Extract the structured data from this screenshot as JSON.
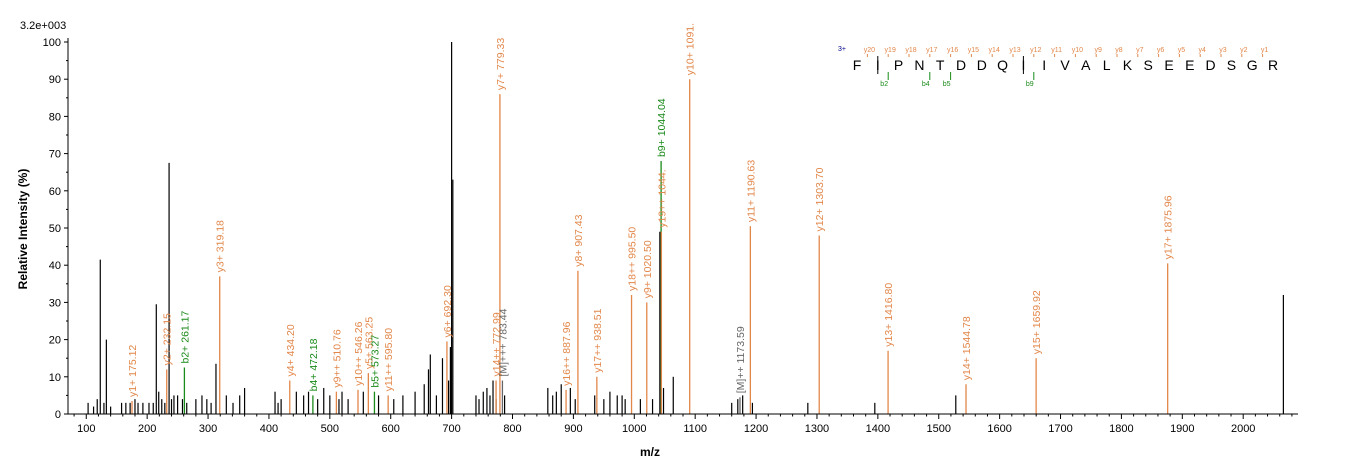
{
  "chart_data": {
    "type": "spectrum",
    "scale_label": "3.2e+003",
    "xlabel": "m/z",
    "ylabel": "Relative  Intensity (%)",
    "xlim": [
      70,
      2090
    ],
    "ylim": [
      0,
      100
    ],
    "x_ticks": [
      100,
      200,
      300,
      400,
      500,
      600,
      700,
      800,
      900,
      1000,
      1100,
      1200,
      1300,
      1400,
      1500,
      1600,
      1700,
      1800,
      1900,
      2000
    ],
    "y_ticks": [
      0,
      10,
      20,
      30,
      40,
      50,
      60,
      70,
      80,
      90,
      100
    ],
    "colors": {
      "y_ion": "#e2874a",
      "b_ion": "#1a8a1a",
      "precursor": "#666666",
      "peak": "#000000",
      "charge": "#00008b"
    },
    "unlabeled_peaks": [
      {
        "x": 103,
        "y": 3
      },
      {
        "x": 112,
        "y": 2
      },
      {
        "x": 118,
        "y": 4
      },
      {
        "x": 123,
        "y": 41.5
      },
      {
        "x": 129,
        "y": 3
      },
      {
        "x": 133,
        "y": 20
      },
      {
        "x": 140,
        "y": 2
      },
      {
        "x": 158,
        "y": 3
      },
      {
        "x": 165,
        "y": 3
      },
      {
        "x": 172,
        "y": 3
      },
      {
        "x": 180,
        "y": 4
      },
      {
        "x": 185,
        "y": 3
      },
      {
        "x": 193,
        "y": 3
      },
      {
        "x": 203,
        "y": 3
      },
      {
        "x": 210,
        "y": 3
      },
      {
        "x": 215,
        "y": 29.5
      },
      {
        "x": 219,
        "y": 6
      },
      {
        "x": 224,
        "y": 4
      },
      {
        "x": 229,
        "y": 3
      },
      {
        "x": 236,
        "y": 67.5
      },
      {
        "x": 240,
        "y": 4
      },
      {
        "x": 244,
        "y": 5
      },
      {
        "x": 250,
        "y": 5
      },
      {
        "x": 258,
        "y": 4
      },
      {
        "x": 265,
        "y": 3
      },
      {
        "x": 280,
        "y": 4
      },
      {
        "x": 290,
        "y": 5
      },
      {
        "x": 298,
        "y": 4
      },
      {
        "x": 305,
        "y": 3
      },
      {
        "x": 313,
        "y": 13.5
      },
      {
        "x": 330,
        "y": 5
      },
      {
        "x": 341,
        "y": 3
      },
      {
        "x": 352,
        "y": 5
      },
      {
        "x": 360,
        "y": 7
      },
      {
        "x": 410,
        "y": 6
      },
      {
        "x": 415,
        "y": 3
      },
      {
        "x": 420,
        "y": 4
      },
      {
        "x": 445,
        "y": 6
      },
      {
        "x": 457,
        "y": 5
      },
      {
        "x": 465,
        "y": 6
      },
      {
        "x": 480,
        "y": 4
      },
      {
        "x": 490,
        "y": 7
      },
      {
        "x": 500,
        "y": 5
      },
      {
        "x": 515,
        "y": 4
      },
      {
        "x": 520,
        "y": 6
      },
      {
        "x": 530,
        "y": 4
      },
      {
        "x": 555,
        "y": 6
      },
      {
        "x": 580,
        "y": 5
      },
      {
        "x": 605,
        "y": 4
      },
      {
        "x": 620,
        "y": 5
      },
      {
        "x": 640,
        "y": 6
      },
      {
        "x": 655,
        "y": 8
      },
      {
        "x": 662,
        "y": 12
      },
      {
        "x": 665,
        "y": 16
      },
      {
        "x": 675,
        "y": 5
      },
      {
        "x": 685,
        "y": 15
      },
      {
        "x": 695,
        "y": 9
      },
      {
        "x": 698,
        "y": 18
      },
      {
        "x": 700,
        "y": 100
      },
      {
        "x": 702,
        "y": 63
      },
      {
        "x": 740,
        "y": 5
      },
      {
        "x": 745,
        "y": 4
      },
      {
        "x": 752,
        "y": 6
      },
      {
        "x": 758,
        "y": 7
      },
      {
        "x": 763,
        "y": 5
      },
      {
        "x": 768,
        "y": 9
      },
      {
        "x": 773,
        "y": 4
      },
      {
        "x": 787,
        "y": 5
      },
      {
        "x": 858,
        "y": 7
      },
      {
        "x": 866,
        "y": 5
      },
      {
        "x": 872,
        "y": 6
      },
      {
        "x": 880,
        "y": 8
      },
      {
        "x": 895,
        "y": 7
      },
      {
        "x": 903,
        "y": 4
      },
      {
        "x": 935,
        "y": 5
      },
      {
        "x": 950,
        "y": 4
      },
      {
        "x": 960,
        "y": 6
      },
      {
        "x": 972,
        "y": 5
      },
      {
        "x": 980,
        "y": 5
      },
      {
        "x": 985,
        "y": 4
      },
      {
        "x": 1010,
        "y": 4
      },
      {
        "x": 1030,
        "y": 4
      },
      {
        "x": 1042,
        "y": 49
      },
      {
        "x": 1048,
        "y": 7
      },
      {
        "x": 1064,
        "y": 10
      },
      {
        "x": 1160,
        "y": 3
      },
      {
        "x": 1170,
        "y": 4
      },
      {
        "x": 1178,
        "y": 5
      },
      {
        "x": 1194,
        "y": 3
      },
      {
        "x": 1285,
        "y": 3
      },
      {
        "x": 1395,
        "y": 3
      },
      {
        "x": 1528,
        "y": 5
      },
      {
        "x": 2066,
        "y": 32
      }
    ],
    "annotated_peaks": [
      {
        "x": 175.12,
        "y": 3.5,
        "label": "y1+ 175.12",
        "type": "y"
      },
      {
        "x": 232.15,
        "y": 12,
        "label": "y2+ 232.15",
        "type": "y"
      },
      {
        "x": 261.17,
        "y": 12.5,
        "label": "b2+ 261.17",
        "type": "b"
      },
      {
        "x": 319.18,
        "y": 37,
        "label": "y3+ 319.18",
        "type": "y"
      },
      {
        "x": 434.2,
        "y": 9,
        "label": "y4+ 434.20",
        "type": "y"
      },
      {
        "x": 472.18,
        "y": 5,
        "label": "b4+ 472.18",
        "type": "b"
      },
      {
        "x": 510.76,
        "y": 6,
        "label": "y9++ 510.76",
        "type": "y"
      },
      {
        "x": 546.26,
        "y": 6.5,
        "label": "y10++ 546.26",
        "type": "y"
      },
      {
        "x": 563.25,
        "y": 11,
        "label": "y5+ 563.25",
        "type": "y"
      },
      {
        "x": 573.27,
        "y": 6,
        "label": "b5+ 573.27",
        "type": "b"
      },
      {
        "x": 595.8,
        "y": 5,
        "label": "y11++ 595.80",
        "type": "y"
      },
      {
        "x": 692.3,
        "y": 19.5,
        "label": "y6+ 692.30",
        "type": "y"
      },
      {
        "x": 772.99,
        "y": 9,
        "label": "y14++ 772.99",
        "type": "y"
      },
      {
        "x": 779.33,
        "y": 86,
        "label": "y7+ 779.33",
        "type": "y"
      },
      {
        "x": 783.44,
        "y": 9,
        "label": "[M]+++ 783.44",
        "type": "m"
      },
      {
        "x": 887.96,
        "y": 6.5,
        "label": "y16++ 887.96",
        "type": "y"
      },
      {
        "x": 907.43,
        "y": 38.5,
        "label": "y8+ 907.43",
        "type": "y"
      },
      {
        "x": 938.51,
        "y": 10,
        "label": "y17++ 938.51",
        "type": "y"
      },
      {
        "x": 995.5,
        "y": 32,
        "label": "y18++ 995.50",
        "type": "y"
      },
      {
        "x": 1020.5,
        "y": 30,
        "label": "y9+ 1020.50",
        "type": "y"
      },
      {
        "x": 1044.04,
        "y": 68,
        "label": "b9+ 1044.04",
        "type": "b"
      },
      {
        "x": 1044.5,
        "y": 49,
        "label": "y19++ 1044.",
        "type": "y"
      },
      {
        "x": 1091.0,
        "y": 90,
        "label": "y10+ 1091.",
        "type": "y"
      },
      {
        "x": 1173.59,
        "y": 4.5,
        "label": "[M]++ 1173.59",
        "type": "m"
      },
      {
        "x": 1190.63,
        "y": 50.5,
        "label": "y11+ 1190.63",
        "type": "y"
      },
      {
        "x": 1303.7,
        "y": 48,
        "label": "y12+ 1303.70",
        "type": "y"
      },
      {
        "x": 1416.8,
        "y": 17,
        "label": "y13+ 1416.80",
        "type": "y"
      },
      {
        "x": 1544.78,
        "y": 8,
        "label": "y14+ 1544.78",
        "type": "y"
      },
      {
        "x": 1659.92,
        "y": 15,
        "label": "y15+ 1659.92",
        "type": "y"
      },
      {
        "x": 1875.96,
        "y": 40.5,
        "label": "y17+ 1875.96",
        "type": "y"
      }
    ],
    "sequence": {
      "charge": "3+",
      "residues": [
        "F",
        "I",
        "P",
        "N",
        "T",
        "D",
        "D",
        "Q",
        "I",
        "I",
        "V",
        "A",
        "L",
        "K",
        "S",
        "E",
        "E",
        "D",
        "S",
        "G",
        "R"
      ],
      "y_ions": [
        "y20",
        "y19",
        "y18",
        "y17",
        "y16",
        "y15",
        "y14",
        "y13",
        "y12",
        "y11",
        "y10",
        "y9",
        "y8",
        "y7",
        "y6",
        "y5",
        "y4",
        "y3",
        "y2",
        "y1"
      ],
      "b_ions": [
        {
          "label": "b2",
          "after": 1
        },
        {
          "label": "b4",
          "after": 3
        },
        {
          "label": "b5",
          "after": 4
        },
        {
          "label": "b9",
          "after": 8
        }
      ],
      "y_cleavages_marked": [
        1,
        8
      ]
    }
  }
}
